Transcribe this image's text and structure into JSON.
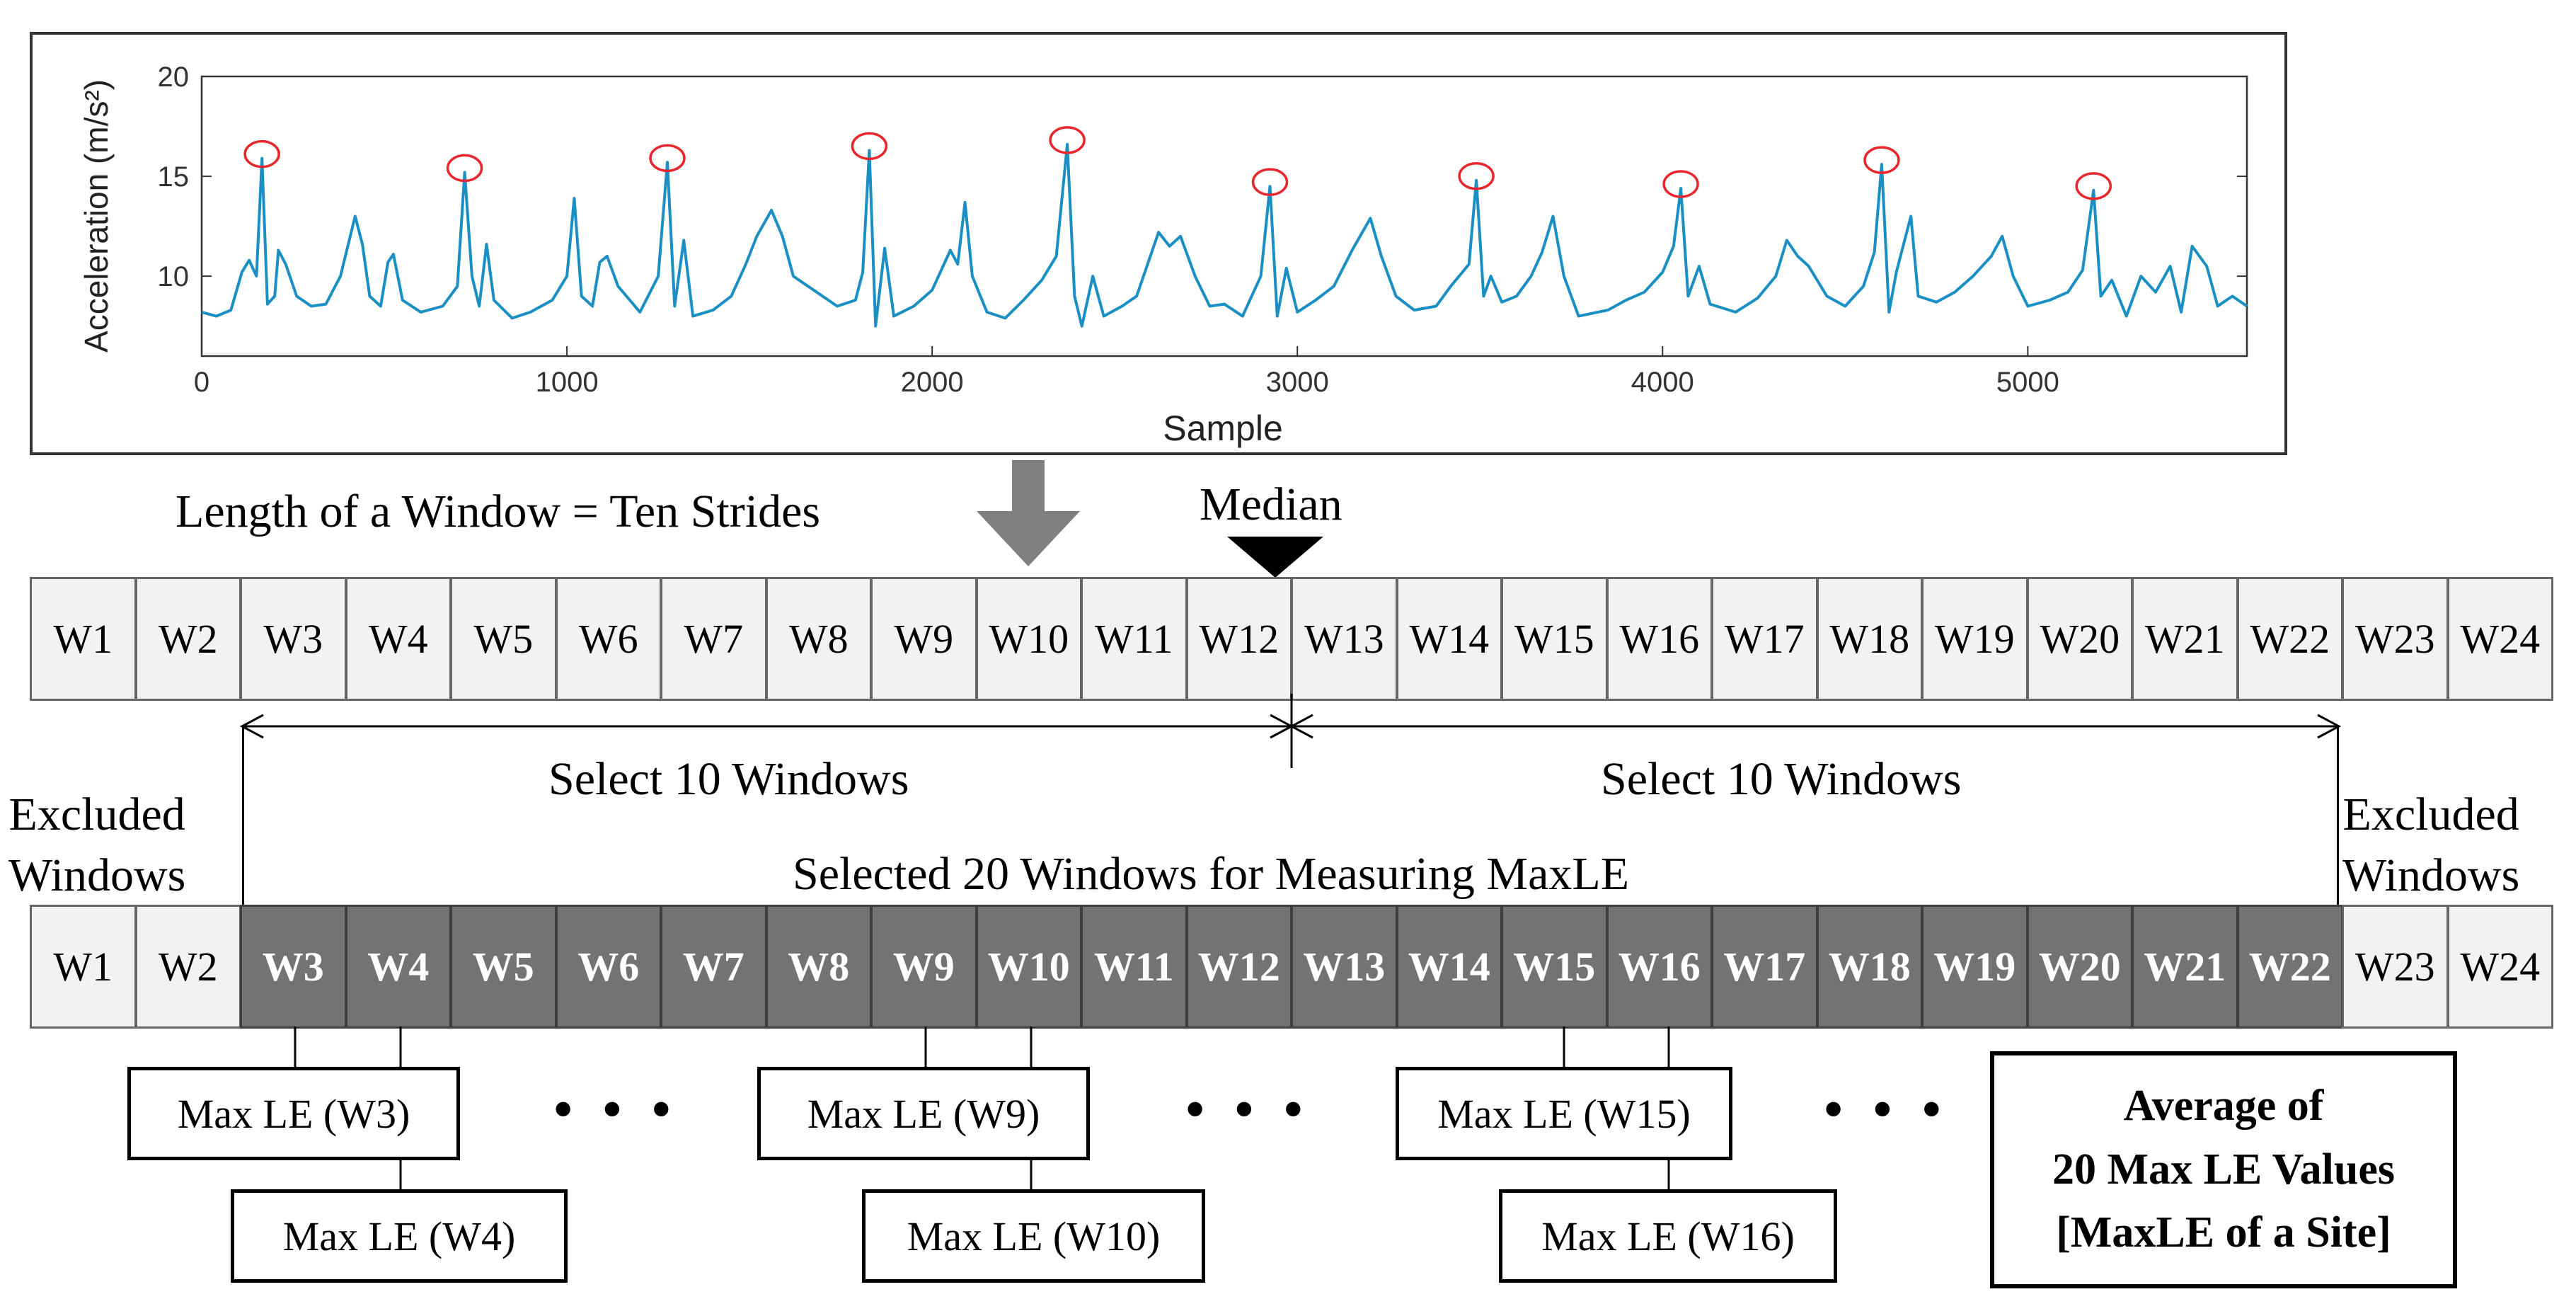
{
  "chart_data": {
    "type": "line",
    "title": "",
    "xlabel": "Sample",
    "ylabel": "Acceleration (m/s²)",
    "xlim": [
      0,
      5600
    ],
    "ylim": [
      6,
      20
    ],
    "xticks": [
      0,
      1000,
      2000,
      3000,
      4000,
      5000
    ],
    "yticks": [
      10,
      15,
      20
    ],
    "grid": false,
    "line_color": "#1a8fc4",
    "marker_color": "#e8262b",
    "series": [
      {
        "points": [
          [
            0,
            8.2
          ],
          [
            40,
            8.0
          ],
          [
            80,
            8.3
          ],
          [
            110,
            10.2
          ],
          [
            130,
            10.8
          ],
          [
            150,
            10.0
          ],
          [
            165,
            15.9
          ],
          [
            180,
            8.6
          ],
          [
            200,
            9.0
          ],
          [
            210,
            11.3
          ],
          [
            230,
            10.6
          ],
          [
            260,
            9.0
          ],
          [
            300,
            8.5
          ],
          [
            340,
            8.6
          ],
          [
            380,
            10.0
          ],
          [
            420,
            13.0
          ],
          [
            440,
            11.6
          ],
          [
            460,
            9.0
          ],
          [
            490,
            8.5
          ],
          [
            510,
            10.7
          ],
          [
            525,
            11.1
          ],
          [
            550,
            8.8
          ],
          [
            600,
            8.2
          ],
          [
            660,
            8.5
          ],
          [
            700,
            9.5
          ],
          [
            720,
            15.2
          ],
          [
            740,
            10.0
          ],
          [
            760,
            8.5
          ],
          [
            780,
            11.6
          ],
          [
            800,
            8.8
          ],
          [
            850,
            7.9
          ],
          [
            900,
            8.2
          ],
          [
            960,
            8.8
          ],
          [
            1000,
            10.0
          ],
          [
            1020,
            13.9
          ],
          [
            1040,
            9.0
          ],
          [
            1070,
            8.5
          ],
          [
            1090,
            10.7
          ],
          [
            1110,
            11.0
          ],
          [
            1140,
            9.5
          ],
          [
            1200,
            8.2
          ],
          [
            1250,
            10.0
          ],
          [
            1275,
            15.7
          ],
          [
            1295,
            8.5
          ],
          [
            1320,
            11.8
          ],
          [
            1345,
            8.0
          ],
          [
            1400,
            8.3
          ],
          [
            1450,
            9.0
          ],
          [
            1490,
            10.6
          ],
          [
            1520,
            12.0
          ],
          [
            1560,
            13.3
          ],
          [
            1590,
            12.0
          ],
          [
            1620,
            10.0
          ],
          [
            1660,
            9.5
          ],
          [
            1700,
            9.0
          ],
          [
            1740,
            8.5
          ],
          [
            1790,
            8.8
          ],
          [
            1810,
            10.2
          ],
          [
            1828,
            16.3
          ],
          [
            1845,
            7.5
          ],
          [
            1870,
            11.4
          ],
          [
            1895,
            8.0
          ],
          [
            1950,
            8.5
          ],
          [
            2000,
            9.3
          ],
          [
            2050,
            11.3
          ],
          [
            2070,
            10.6
          ],
          [
            2090,
            13.7
          ],
          [
            2110,
            10.0
          ],
          [
            2150,
            8.2
          ],
          [
            2200,
            7.9
          ],
          [
            2250,
            8.8
          ],
          [
            2300,
            9.8
          ],
          [
            2340,
            11.0
          ],
          [
            2370,
            16.6
          ],
          [
            2390,
            9.0
          ],
          [
            2410,
            7.5
          ],
          [
            2440,
            10.0
          ],
          [
            2470,
            8.0
          ],
          [
            2520,
            8.5
          ],
          [
            2560,
            9.0
          ],
          [
            2620,
            12.2
          ],
          [
            2650,
            11.5
          ],
          [
            2680,
            12.0
          ],
          [
            2720,
            10.0
          ],
          [
            2760,
            8.5
          ],
          [
            2800,
            8.6
          ],
          [
            2850,
            8.0
          ],
          [
            2900,
            10.0
          ],
          [
            2925,
            14.5
          ],
          [
            2945,
            8.0
          ],
          [
            2970,
            10.4
          ],
          [
            3000,
            8.2
          ],
          [
            3050,
            8.8
          ],
          [
            3100,
            9.5
          ],
          [
            3150,
            11.3
          ],
          [
            3200,
            12.9
          ],
          [
            3230,
            11.0
          ],
          [
            3270,
            9.0
          ],
          [
            3320,
            8.3
          ],
          [
            3380,
            8.5
          ],
          [
            3420,
            9.5
          ],
          [
            3470,
            10.6
          ],
          [
            3490,
            14.8
          ],
          [
            3510,
            9.0
          ],
          [
            3530,
            10.0
          ],
          [
            3560,
            8.7
          ],
          [
            3600,
            9.0
          ],
          [
            3640,
            10.0
          ],
          [
            3670,
            11.2
          ],
          [
            3700,
            13.0
          ],
          [
            3730,
            10.0
          ],
          [
            3770,
            8.0
          ],
          [
            3850,
            8.3
          ],
          [
            3900,
            8.8
          ],
          [
            3950,
            9.2
          ],
          [
            4000,
            10.2
          ],
          [
            4030,
            11.5
          ],
          [
            4050,
            14.4
          ],
          [
            4070,
            9.0
          ],
          [
            4100,
            10.5
          ],
          [
            4130,
            8.6
          ],
          [
            4200,
            8.2
          ],
          [
            4260,
            8.9
          ],
          [
            4310,
            10.0
          ],
          [
            4340,
            11.8
          ],
          [
            4370,
            11.0
          ],
          [
            4400,
            10.5
          ],
          [
            4450,
            9.0
          ],
          [
            4500,
            8.5
          ],
          [
            4550,
            9.5
          ],
          [
            4580,
            11.2
          ],
          [
            4600,
            15.6
          ],
          [
            4620,
            8.2
          ],
          [
            4640,
            10.2
          ],
          [
            4680,
            13.0
          ],
          [
            4700,
            9.0
          ],
          [
            4750,
            8.7
          ],
          [
            4800,
            9.2
          ],
          [
            4850,
            10.0
          ],
          [
            4900,
            11.0
          ],
          [
            4930,
            12.0
          ],
          [
            4960,
            10.0
          ],
          [
            5000,
            8.5
          ],
          [
            5060,
            8.8
          ],
          [
            5110,
            9.2
          ],
          [
            5150,
            10.3
          ],
          [
            5180,
            14.3
          ],
          [
            5200,
            9.0
          ],
          [
            5230,
            9.8
          ],
          [
            5270,
            8.0
          ],
          [
            5310,
            10.0
          ],
          [
            5350,
            9.2
          ],
          [
            5390,
            10.5
          ],
          [
            5420,
            8.2
          ],
          [
            5450,
            11.5
          ],
          [
            5490,
            10.5
          ],
          [
            5520,
            8.5
          ],
          [
            5560,
            9.0
          ],
          [
            5600,
            8.5
          ]
        ]
      }
    ],
    "peaks": [
      {
        "x": 165,
        "y": 15.9
      },
      {
        "x": 720,
        "y": 15.2
      },
      {
        "x": 1275,
        "y": 15.7
      },
      {
        "x": 1828,
        "y": 16.3
      },
      {
        "x": 2370,
        "y": 16.6
      },
      {
        "x": 2925,
        "y": 14.5
      },
      {
        "x": 3490,
        "y": 14.8
      },
      {
        "x": 4050,
        "y": 14.4
      },
      {
        "x": 4600,
        "y": 15.6
      },
      {
        "x": 5180,
        "y": 14.3
      }
    ]
  },
  "diagram": {
    "window_length_label": "Length of a Window = Ten Strides",
    "median_label": "Median",
    "windows": [
      "W1",
      "W2",
      "W3",
      "W4",
      "W5",
      "W6",
      "W7",
      "W8",
      "W9",
      "W10",
      "W11",
      "W12",
      "W13",
      "W14",
      "W15",
      "W16",
      "W17",
      "W18",
      "W19",
      "W20",
      "W21",
      "W22",
      "W23",
      "W24"
    ],
    "select_left_label": "Select 10 Windows",
    "select_right_label": "Select 10 Windows",
    "excluded_left": [
      "Excluded",
      "Windows"
    ],
    "excluded_right": [
      "Excluded",
      "Windows"
    ],
    "selected_label": "Selected 20 Windows for Measuring MaxLE",
    "maxle_boxes": [
      "Max LE (W3)",
      "Max LE (W4)",
      "Max LE (W9)",
      "Max LE (W10)",
      "Max LE (W15)",
      "Max LE (W16)"
    ],
    "dots": "•••",
    "average_box": [
      "Average of",
      "20 Max LE Values",
      "[MaxLE of a Site]"
    ]
  }
}
